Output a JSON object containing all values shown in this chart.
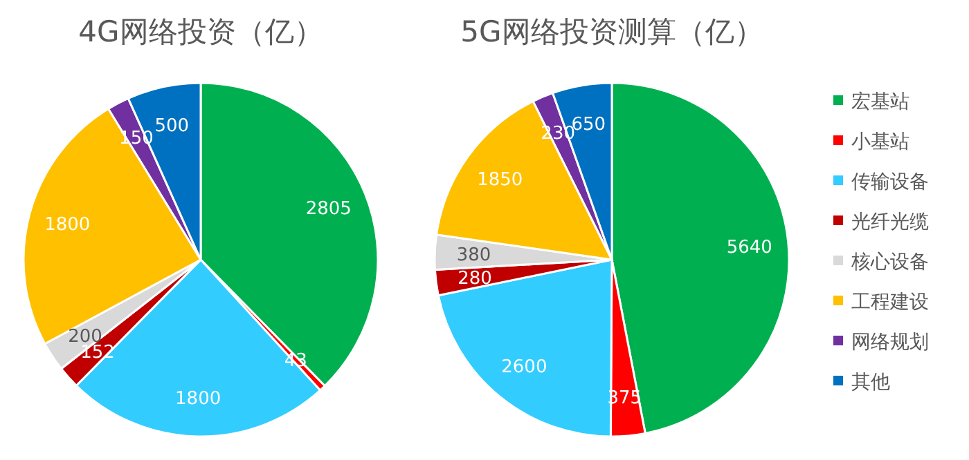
{
  "chart_data": [
    {
      "type": "pie",
      "title": "4G网络投资（亿）",
      "values": [
        2805,
        43,
        1800,
        152,
        200,
        1800,
        150,
        500
      ],
      "colors": [
        "#00b050",
        "#ff0000",
        "#33ccff",
        "#c00000",
        "#d9d9d9",
        "#ffc000",
        "#7030a0",
        "#0070c0"
      ],
      "data_labels": true,
      "legend": false
    },
    {
      "type": "pie",
      "title": "5G网络投资测算（亿）",
      "categories": [
        "宏基站",
        "小基站",
        "传输设备",
        "光纤光缆",
        "核心设备",
        "工程建设",
        "网络规划",
        "其他"
      ],
      "values": [
        5640,
        375,
        2600,
        280,
        380,
        1850,
        230,
        650
      ],
      "colors": [
        "#00b050",
        "#ff0000",
        "#33ccff",
        "#c00000",
        "#d9d9d9",
        "#ffc000",
        "#7030a0",
        "#0070c0"
      ],
      "data_labels": true,
      "legend": "right"
    }
  ]
}
